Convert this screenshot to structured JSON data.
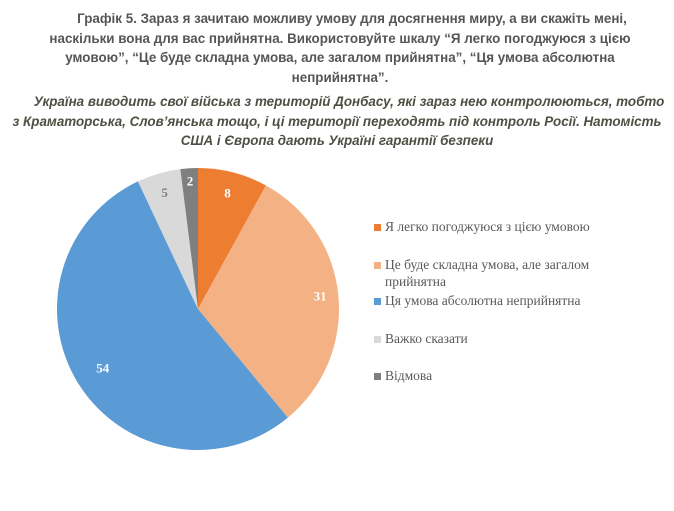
{
  "header": {
    "title": "Графік 5. Зараз я зачитаю можливу умову для досягнення миру, а ви скажіть мені, наскільки вона для вас прийнятна. Використовуйте шкалу “Я легко погоджуюся з цією умовою”, “Це буде складна умова, але загалом прийнятна”, “Ця умова абсолютна неприйнятна”.",
    "subtitle": "Україна виводить свої війська з територій Донбасу, які зараз нею контролюються, тобто з Краматорська, Слов’янська тощо, і ці території переходять під контроль Росії. Натомість США і Європа дають Україні гарантії безпеки"
  },
  "chart_data": {
    "type": "pie",
    "title": "Графік 5. Зараз я зачитаю можливу умову для досягнення миру, а ви скажіть мені, наскільки вона для вас прийнятна. Використовуйте шкалу “Я легко погоджуюся з цією умовою”, “Це буде складна умова, але загалом прийнятна”, “Ця умова абсолютна неприйнятна”.",
    "subtitle": "Україна виводить свої війська з територій Донбасу, які зараз нею контролюються, тобто з Краматорська, Слов’янська тощо, і ці території переходять під контроль Росії. Натомість США і Європа дають Україні гарантії безпеки",
    "categories": [
      "Я легко погоджуюся з цією умовою",
      "Це буде складна умова, але загалом прийнятна",
      "Ця умова абсолютна неприйнятна",
      "Важко сказати",
      "Відмова"
    ],
    "values": [
      8,
      31,
      54,
      5,
      2
    ],
    "colors": [
      "#ED7D31",
      "#F4B183",
      "#5B9BD5",
      "#D9D9D9",
      "#7F7F7F"
    ],
    "label_colors": [
      "#ffffff",
      "#ffffff",
      "#ffffff",
      "#7f7f7f",
      "#ffffff"
    ],
    "start_angle_deg": 0,
    "direction": "clockwise",
    "legend_position": "right",
    "unit": "%"
  },
  "legend": {
    "items": [
      {
        "label": "Я легко погоджуюся з цією умовою",
        "color": "#ED7D31"
      },
      {
        "label": "Це буде складна умова, але загалом прийнятна",
        "color": "#F4B183"
      },
      {
        "label": "Ця умова абсолютна неприйнятна",
        "color": "#5B9BD5"
      },
      {
        "label": "Важко сказати",
        "color": "#D9D9D9"
      },
      {
        "label": "Відмова",
        "color": "#7F7F7F"
      }
    ]
  }
}
